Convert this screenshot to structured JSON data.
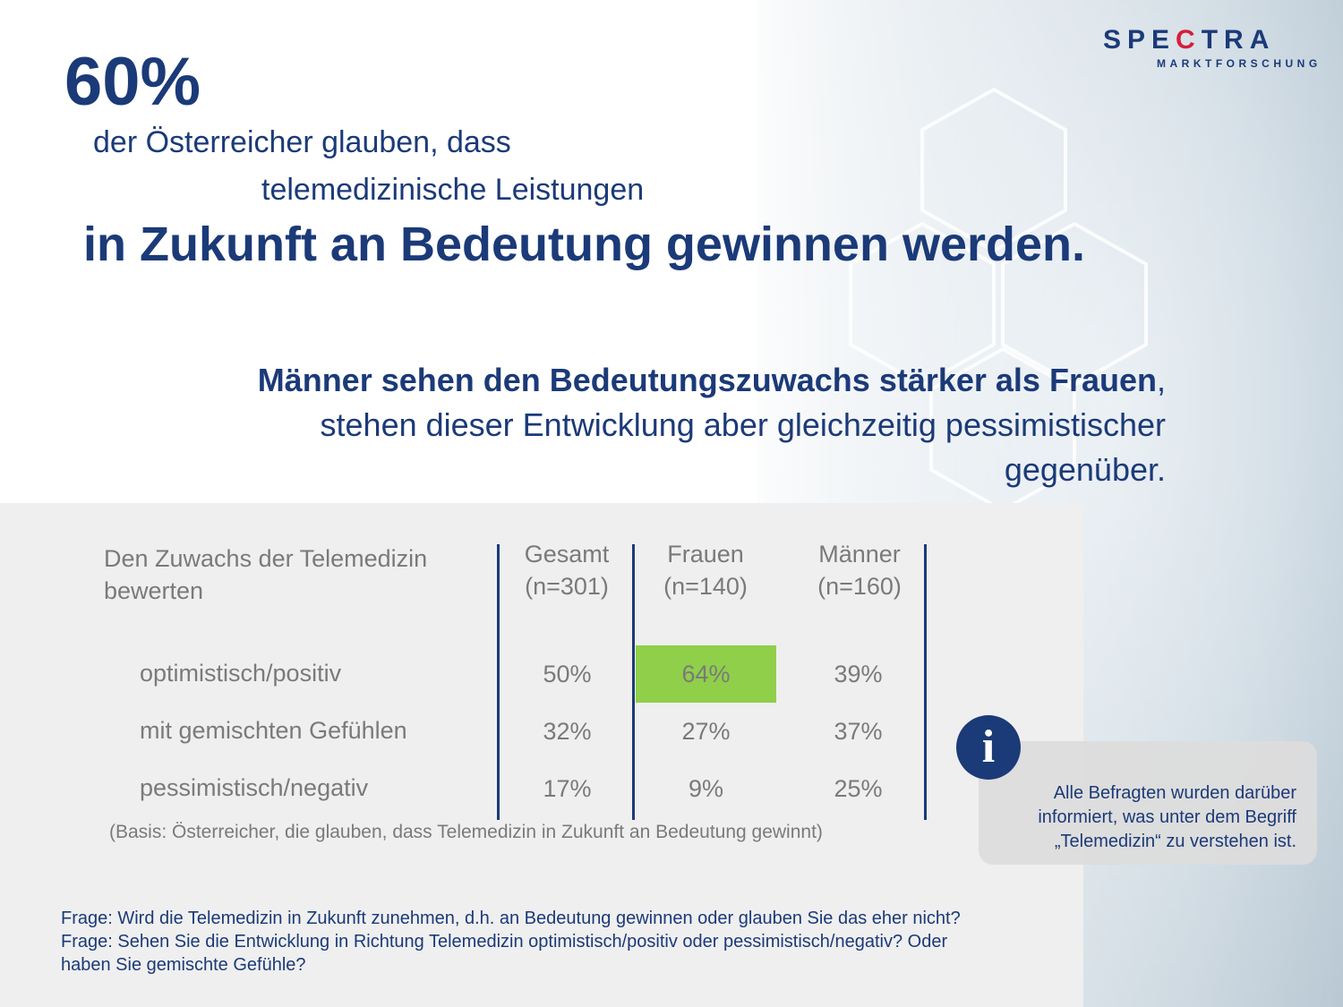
{
  "headline": {
    "percent": "60%",
    "line1": "der Österreicher glauben, dass",
    "line2": "telemedizinische Leistungen",
    "line3": "in Zukunft an Bedeutung gewinnen werden."
  },
  "subheadline": {
    "bold": "Männer sehen den Bedeutungszuwachs stärker als Frauen",
    "comma": ",",
    "rest_line1": "stehen dieser Entwicklung aber gleichzeitig pessimistischer",
    "rest_line2": "gegenüber."
  },
  "logo": {
    "name_a": "SPE",
    "name_c": "C",
    "name_b": "TRA",
    "sub": "MARKTFORSCHUNG"
  },
  "table": {
    "title_line1": "Den Zuwachs der Telemedizin",
    "title_line2": "bewerten",
    "columns": [
      {
        "name": "Gesamt",
        "n": "(n=301)"
      },
      {
        "name": "Frauen",
        "n": "(n=140)"
      },
      {
        "name": "Männer",
        "n": "(n=160)"
      }
    ],
    "rows": [
      {
        "label": "optimistisch/positiv",
        "values": [
          "50%",
          "64%",
          "39%"
        ]
      },
      {
        "label": "mit gemischten Gefühlen",
        "values": [
          "32%",
          "27%",
          "37%"
        ]
      },
      {
        "label": "pessimistisch/negativ",
        "values": [
          "17%",
          "9%",
          "25%"
        ]
      }
    ],
    "highlight_color": "#8fcf4a",
    "basis": "(Basis: Österreicher, die glauben, dass Telemedizin in Zukunft an Bedeutung gewinnt)"
  },
  "info": {
    "icon": "info-icon",
    "line1": "Alle Befragten wurden darüber",
    "line2": "informiert, was unter dem Begriff",
    "line3": "„Telemedizin“ zu verstehen ist."
  },
  "questions": {
    "q1": "Frage: Wird die Telemedizin in Zukunft zunehmen, d.h. an Bedeutung gewinnen oder glauben Sie das eher nicht?",
    "q2": "Frage: Sehen Sie die Entwicklung in Richtung Telemedizin optimistisch/positiv oder pessimistisch/negativ? Oder",
    "q3": "haben Sie gemischte Gefühle?"
  },
  "colors": {
    "brand": "#1b3a78",
    "accent": "#d61e3a",
    "text_gray": "#7a7a7a"
  }
}
